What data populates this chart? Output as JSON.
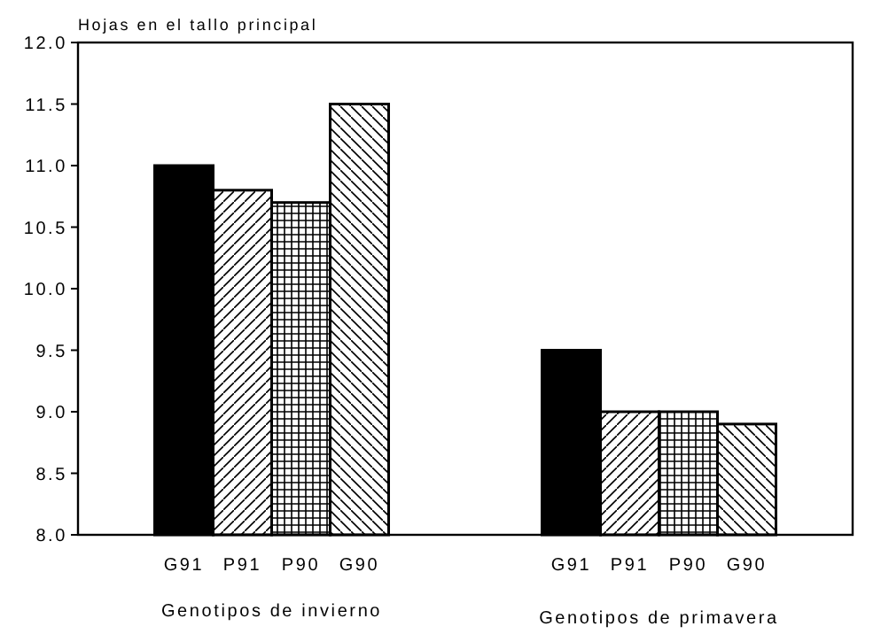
{
  "chart_data": {
    "type": "bar",
    "ylabel": "Hojas en el tallo principal",
    "categories": [
      "G91",
      "P91",
      "P90",
      "G90",
      "G91",
      "P91",
      "P90",
      "G90"
    ],
    "values": [
      11.0,
      10.8,
      10.7,
      11.5,
      9.5,
      9.0,
      9.0,
      8.9
    ],
    "colors": [
      "#000000",
      "#000000",
      "#000000",
      "#000000",
      "#000000",
      "#000000",
      "#000000",
      "#000000"
    ],
    "ylim": [
      8,
      12
    ],
    "yticks": [
      {
        "value": 8,
        "label": "8.0"
      },
      {
        "value": 8.5,
        "label": "8.5"
      },
      {
        "value": 9,
        "label": "9.0"
      },
      {
        "value": 9.5,
        "label": "9.5"
      },
      {
        "value": 10,
        "label": "10.0"
      },
      {
        "value": 10.5,
        "label": "10.5"
      },
      {
        "value": 11,
        "label": "11.0"
      },
      {
        "value": 11.5,
        "label": "11.5"
      },
      {
        "value": 12,
        "label": "12.0"
      }
    ],
    "annotations": [
      "Genotipos de invierno",
      "Genotipos de primavera"
    ],
    "grid": false
  }
}
